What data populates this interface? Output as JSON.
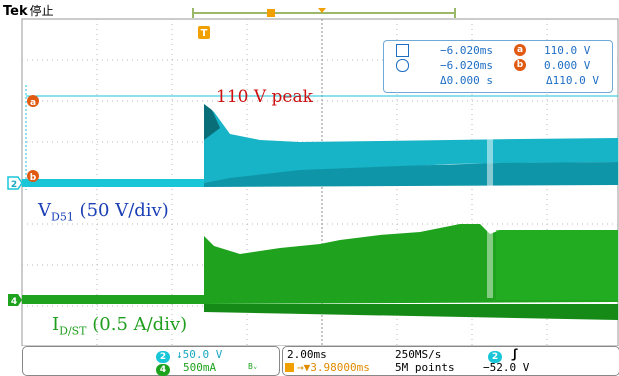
{
  "header": {
    "brand": "Tek",
    "status": "停止"
  },
  "colors": {
    "ch2": "#19c6d8",
    "ch4": "#1fa31f",
    "cursor": "#1e6ec4",
    "badge": "#e05a12",
    "annotation_red": "#cc1010",
    "annotation_blue": "#1a3fb5"
  },
  "markers": {
    "trigger": "T",
    "cursor_a": "a",
    "cursor_b": "b",
    "ch2": "2",
    "ch4": "4"
  },
  "annotations": {
    "peak": "110 V peak",
    "vd_main": "V",
    "vd_sub": "D51",
    "vd_rest": " (50 V/div)",
    "id_main": "I",
    "id_sub": "D/ST",
    "id_rest": " (0.5 A/div)"
  },
  "cursor_readout": {
    "row1_time": "−6.020ms",
    "row1_value": "110.0 V",
    "row2_time": "−6.020ms",
    "row2_value": "0.000 V",
    "delta_time": "Δ0.000 s",
    "delta_value": "Δ110.0 V"
  },
  "channels": {
    "ch2": {
      "label": "2",
      "scale": "↓50.0 V"
    },
    "ch4": {
      "label": "4",
      "scale": "500mA",
      "bw": "Bᵥ"
    }
  },
  "horizontal": {
    "timebase": "2.00ms",
    "sample_rate": "250MS/s",
    "trigger_pos": "→▼3.98000ms",
    "record": "5M points"
  },
  "trigger": {
    "channel": "2",
    "slope": "ʃ",
    "level": "−52.0 V"
  }
}
